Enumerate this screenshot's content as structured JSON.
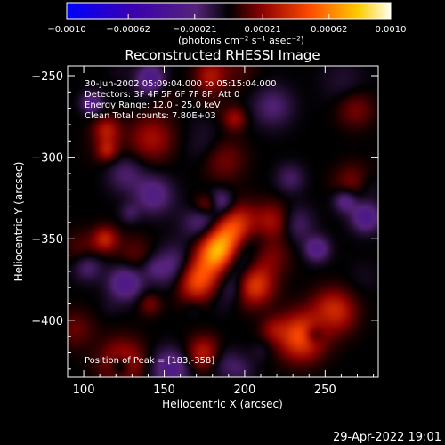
{
  "chart_data": {
    "type": "heatmap",
    "title": "Reconstructed RHESSI Image",
    "xlabel": "Heliocentric X (arcsec)",
    "ylabel": "Heliocentric Y (arcsec)",
    "xlim": [
      90,
      283
    ],
    "ylim": [
      -435,
      -244
    ],
    "xticks": [
      100,
      150,
      200,
      250
    ],
    "yticks": [
      -250,
      -300,
      -350,
      -400
    ],
    "colorbar": {
      "range": [
        -0.001,
        0.001
      ],
      "ticks": [
        "-0.0010",
        "-0.00062",
        "-0.00021",
        "0.00021",
        "0.00062",
        "0.0010"
      ],
      "unit": "(photons cm⁻² s⁻¹ asec⁻²)"
    },
    "annotations": [
      "30-Jun-2002 05:09:04.000 to 05:15:04.000",
      "Detectors: 3F 4F 5F 6F 7F 8F, Att 0",
      "Energy Range: 12.0 - 25.0 keV",
      "Clean    Total counts: 7.80E+03"
    ],
    "peak_label": "Position of Peak = [183,-358]",
    "peak": {
      "x": 183,
      "y": -358
    },
    "grid": false,
    "timestamp": "29-Apr-2022 19:01"
  }
}
